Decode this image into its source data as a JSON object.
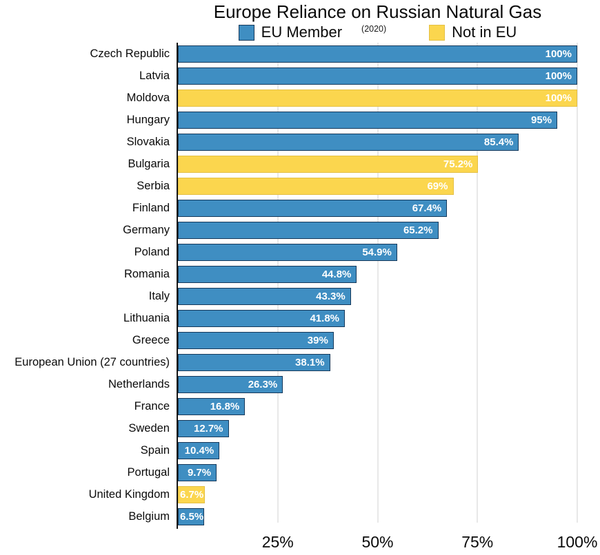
{
  "header": {
    "title": "Europe Reliance on Russian Natural Gas",
    "year_note": "(2020)"
  },
  "legend": [
    {
      "label": "EU Member",
      "fill": "#3F8EC2",
      "border": "#16395B"
    },
    {
      "label": "Not in EU",
      "fill": "#FBD64E",
      "border": "#E4C044"
    }
  ],
  "chart_data": {
    "type": "bar",
    "orientation": "horizontal",
    "title": "Europe Reliance on Russian Natural Gas",
    "subtitle": "(2020)",
    "xlabel": "",
    "ylabel": "",
    "xlim": [
      0,
      100
    ],
    "grid": true,
    "legend_position": "top",
    "x_tick_values": [
      25,
      50,
      75,
      100
    ],
    "x_ticks": [
      "25%",
      "50%",
      "75%",
      "100%"
    ],
    "styles": {
      "EU Member": {
        "fill": "#3F8EC2",
        "border": "#16395B"
      },
      "Not in EU": {
        "fill": "#FBD64E",
        "border": "#E4C044"
      }
    },
    "categories": [
      "Czech Republic",
      "Latvia",
      "Moldova",
      "Hungary",
      "Slovakia",
      "Bulgaria",
      "Serbia",
      "Finland",
      "Germany",
      "Poland",
      "Romania",
      "Italy",
      "Lithuania",
      "Greece",
      "European Union (27 countries)",
      "Netherlands",
      "France",
      "Sweden",
      "Spain",
      "Portugal",
      "United Kingdom",
      "Belgium"
    ],
    "values": [
      100,
      100,
      100,
      95,
      85.4,
      75.2,
      69,
      67.4,
      65.2,
      54.9,
      44.8,
      43.3,
      41.8,
      39,
      38.1,
      26.3,
      16.8,
      12.7,
      10.4,
      9.7,
      6.7,
      6.5
    ],
    "labels": [
      "100%",
      "100%",
      "100%",
      "95%",
      "85.4%",
      "75.2%",
      "69%",
      "67.4%",
      "65.2%",
      "54.9%",
      "44.8%",
      "43.3%",
      "41.8%",
      "39%",
      "38.1%",
      "26.3%",
      "16.8%",
      "12.7%",
      "10.4%",
      "9.7%",
      "6.7%",
      "6.5%"
    ],
    "groups": [
      "EU Member",
      "EU Member",
      "Not in EU",
      "EU Member",
      "EU Member",
      "Not in EU",
      "Not in EU",
      "EU Member",
      "EU Member",
      "EU Member",
      "EU Member",
      "EU Member",
      "EU Member",
      "EU Member",
      "EU Member",
      "EU Member",
      "EU Member",
      "EU Member",
      "EU Member",
      "EU Member",
      "Not in EU",
      "EU Member"
    ]
  }
}
